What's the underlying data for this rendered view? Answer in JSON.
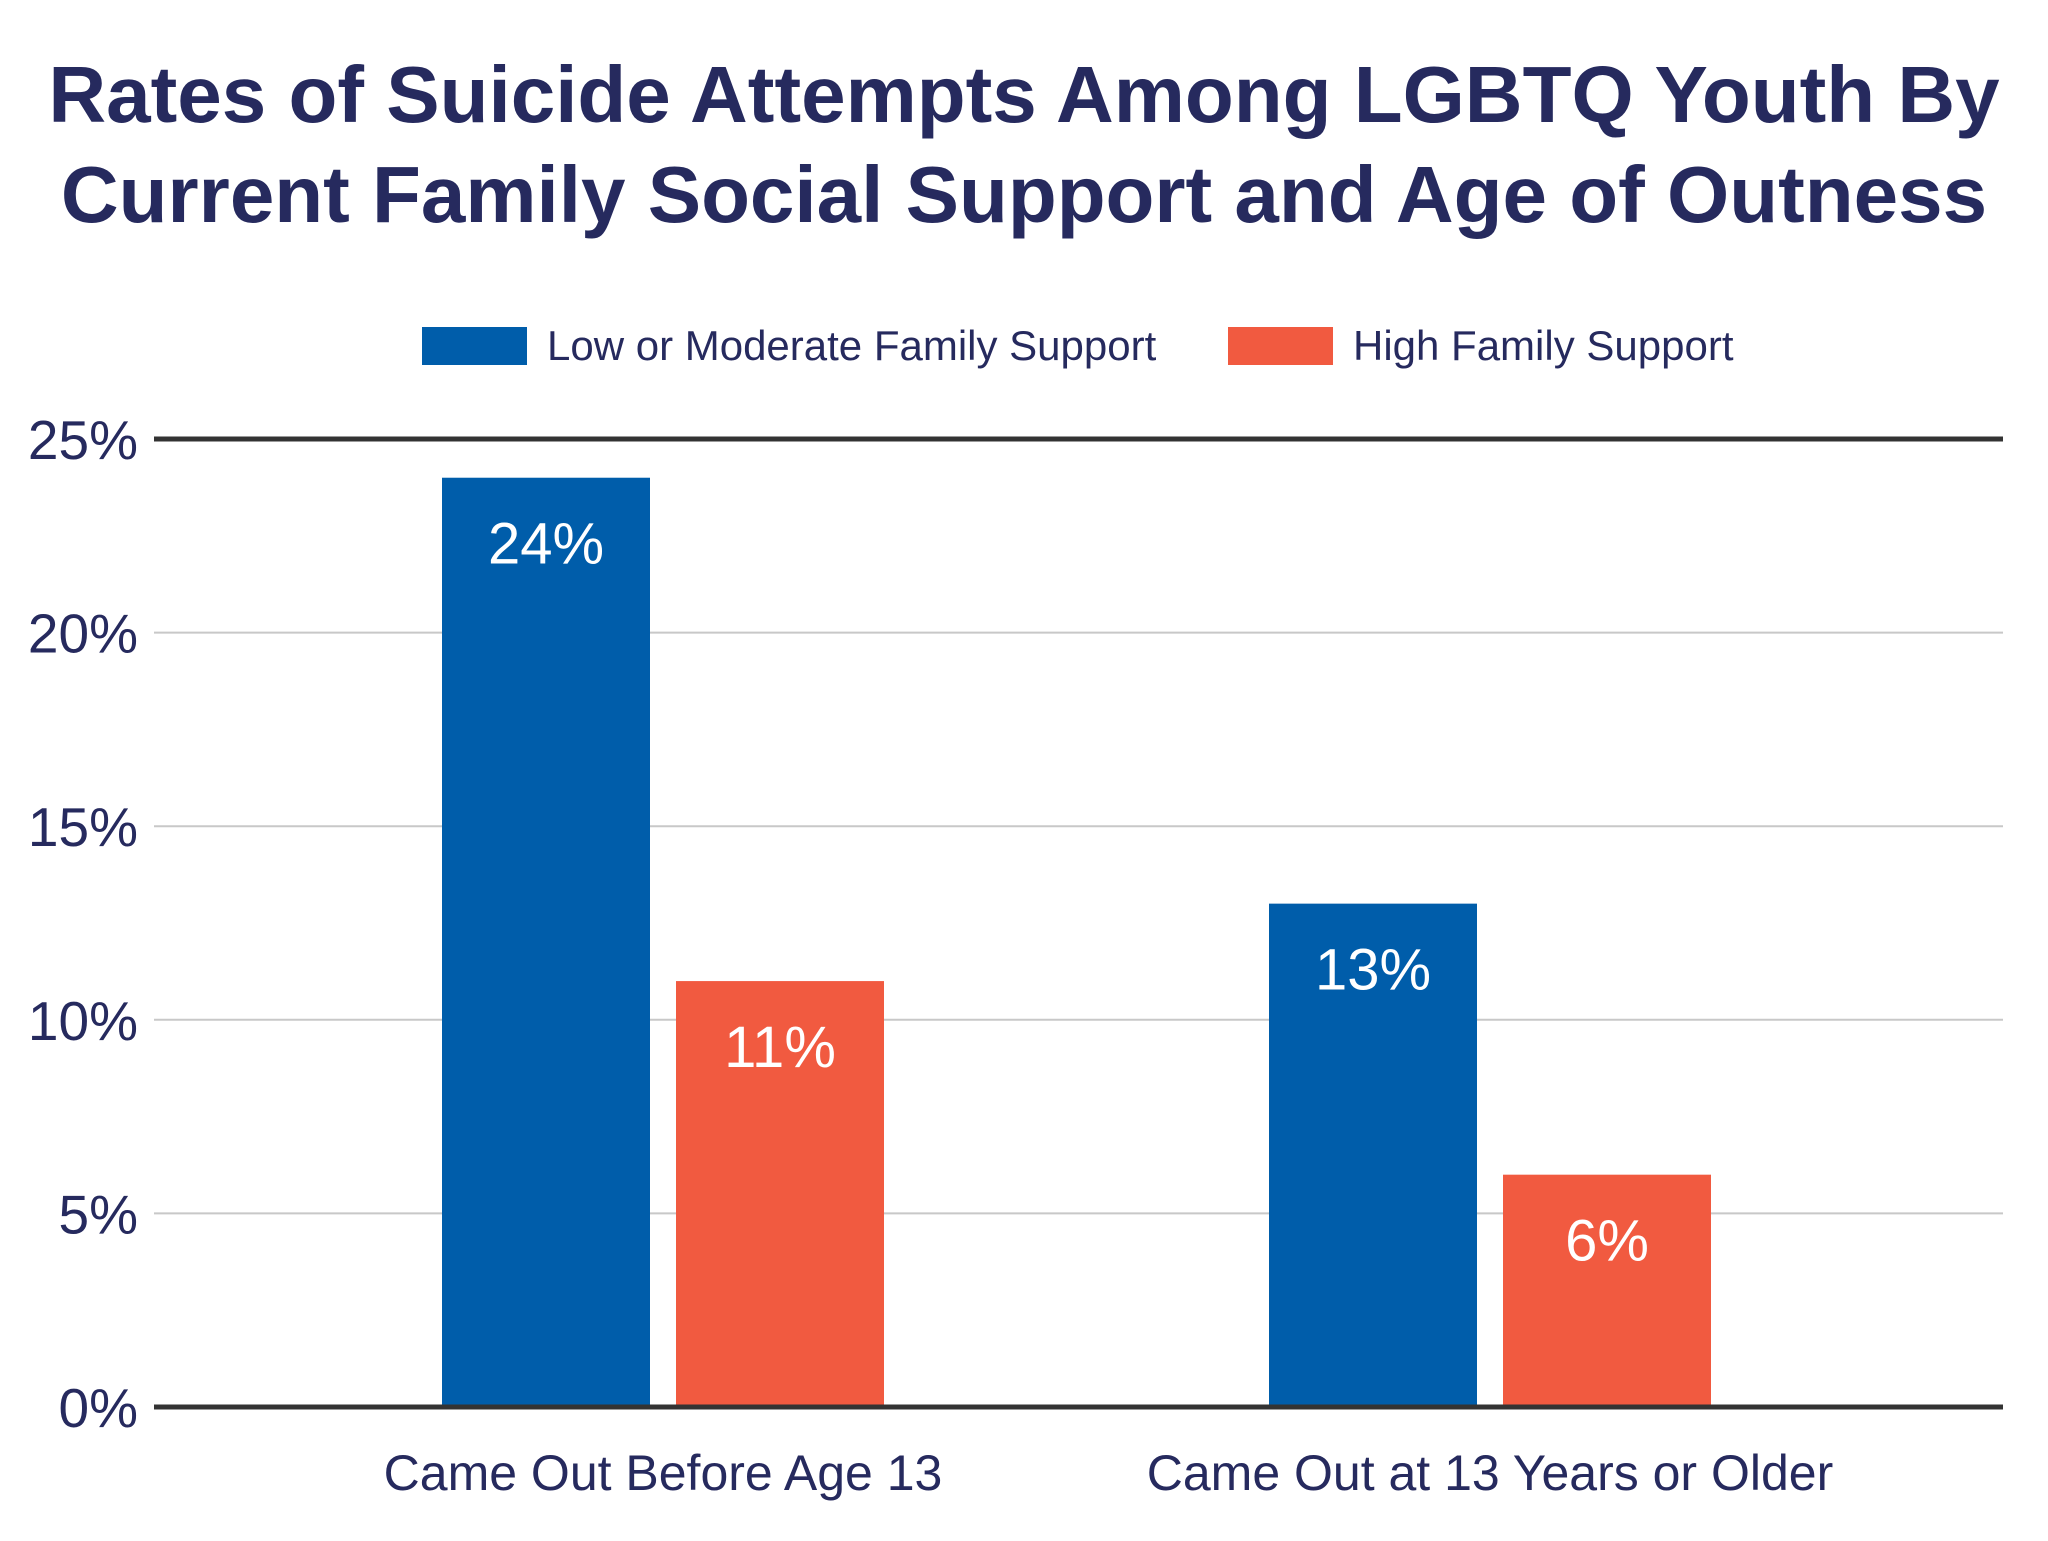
{
  "chart_data": {
    "type": "bar",
    "title_lines": [
      "Rates of Suicide Attempts Among LGBTQ Youth By",
      "Current Family Social Support and Age of Outness"
    ],
    "categories": [
      "Came Out Before Age 13",
      "Came Out at 13 Years or Older"
    ],
    "series": [
      {
        "name": "Low or Moderate Family Support",
        "color": "#005daa",
        "values": [
          24,
          13
        ],
        "labels": [
          "24%",
          "13%"
        ]
      },
      {
        "name": "High Family Support",
        "color": "#f15a40",
        "values": [
          11,
          6
        ],
        "labels": [
          "11%",
          "6%"
        ]
      }
    ],
    "ylim": [
      0,
      25
    ],
    "yticks": [
      0,
      5,
      10,
      15,
      20,
      25
    ],
    "ytick_labels": [
      "0%",
      "5%",
      "10%",
      "15%",
      "20%",
      "25%"
    ],
    "xlabel": "",
    "ylabel": "",
    "grid": true,
    "legend_position": "top-center",
    "colors": {
      "title": "#262a5e",
      "text": "#262a5e",
      "grid": "#c8c8c8",
      "axis": "#333333"
    }
  }
}
